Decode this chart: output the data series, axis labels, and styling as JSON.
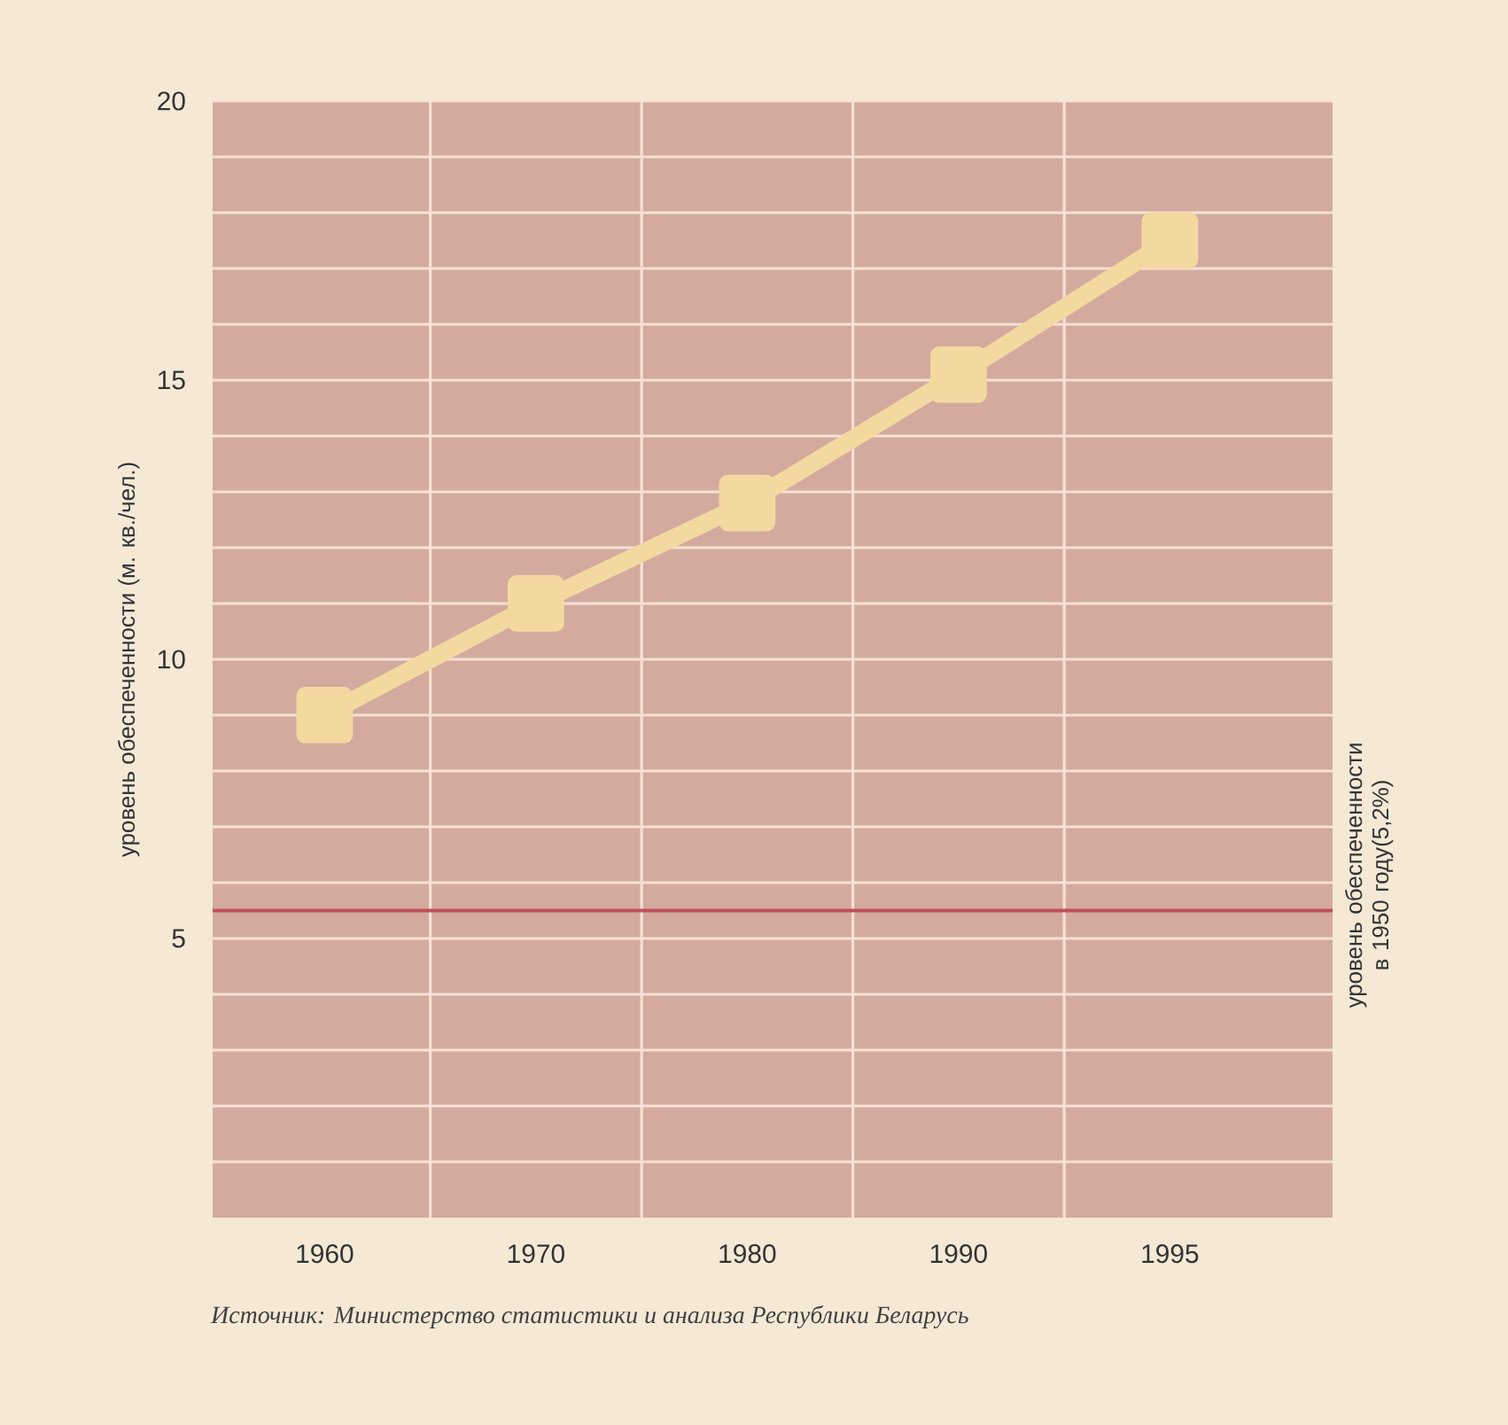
{
  "chart_data": {
    "type": "line",
    "ylabel": "уровень обеспеченности (м. кв./чел.)",
    "categories": [
      "1960",
      "1970",
      "1980",
      "1990",
      "1995"
    ],
    "series": [
      {
        "color": "#f3d9a0",
        "values": [
          9.0,
          11.0,
          12.8,
          15.1,
          17.5
        ]
      }
    ],
    "marker": "square",
    "ylim": [
      0,
      20
    ],
    "yticks": [
      {
        "value": 1,
        "label": null
      },
      {
        "value": 2,
        "label": null
      },
      {
        "value": 3,
        "label": null
      },
      {
        "value": 4,
        "label": null
      },
      5,
      {
        "value": 6,
        "label": null
      },
      {
        "value": 7,
        "label": null
      },
      {
        "value": 8,
        "label": null
      },
      {
        "value": 9,
        "label": null
      },
      10,
      {
        "value": 11,
        "label": null
      },
      {
        "value": 12,
        "label": null
      },
      {
        "value": 13,
        "label": null
      },
      {
        "value": 14,
        "label": null
      },
      15,
      {
        "value": 16,
        "label": null
      },
      {
        "value": 17,
        "label": null
      },
      {
        "value": 18,
        "label": null
      },
      {
        "value": 19,
        "label": null
      },
      20
    ],
    "grid": true,
    "ref_lines": [
      {
        "axis": "y",
        "value": 5.5,
        "label": "уровень обеспеченности в 1950 году(5,2%)",
        "color": "#c0505a"
      }
    ],
    "annotations": [
      "*Источник: Министерство статистики и анализа Республики Беларусь*"
    ]
  }
}
